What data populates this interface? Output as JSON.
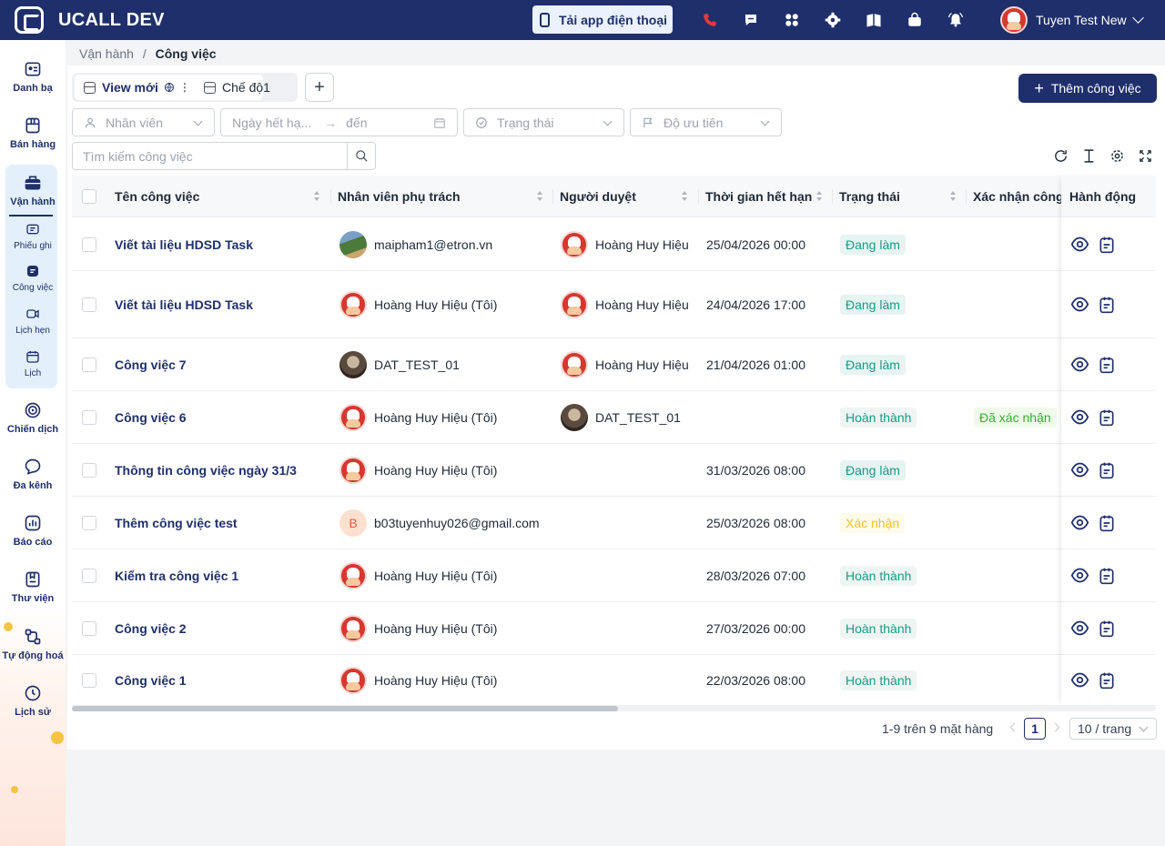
{
  "app": {
    "title": "UCALL DEV"
  },
  "header": {
    "app_download_label": "Tải app điện thoại",
    "user_name": "Tuyen Test New",
    "icons": [
      "phone-icon",
      "chat-icon",
      "grid-icon",
      "settings-icon",
      "book-icon",
      "bag-icon",
      "bell-icon"
    ],
    "missed_call_color": "#e23b3b"
  },
  "sidebar": {
    "items": [
      {
        "label": "Danh bạ",
        "icon": "contacts-icon"
      },
      {
        "label": "Bán hàng",
        "icon": "store-icon"
      },
      {
        "label": "Vận hành",
        "icon": "briefcase-icon",
        "active": true
      },
      {
        "label": "Chiến dịch",
        "icon": "target-icon"
      },
      {
        "label": "Đa kênh",
        "icon": "chat-bubble-icon"
      },
      {
        "label": "Báo cáo",
        "icon": "chart-icon"
      },
      {
        "label": "Thư viện",
        "icon": "library-icon"
      },
      {
        "label": "Tự động hoá",
        "icon": "automation-icon"
      },
      {
        "label": "Lịch sử",
        "icon": "clock-icon"
      }
    ],
    "sub_items": [
      {
        "label": "Phiếu ghi",
        "icon": "ticket-icon"
      },
      {
        "label": "Công việc",
        "icon": "task-icon",
        "active": true
      },
      {
        "label": "Lịch hẹn",
        "icon": "video-icon"
      },
      {
        "label": "Lịch",
        "icon": "calendar-icon"
      }
    ]
  },
  "breadcrumb": {
    "parent": "Vận hành",
    "separator": "/",
    "current": "Công việc"
  },
  "tabs": [
    {
      "label": "View mới",
      "active": true
    },
    {
      "label": "Chế độ1",
      "active": false
    }
  ],
  "add_tab_label": "+",
  "add_task_label": "Thêm công việc",
  "filters": {
    "employee_placeholder": "Nhân viên",
    "deadline_from_placeholder": "Ngày hết hạ...",
    "deadline_to_placeholder": "đến",
    "status_placeholder": "Trạng thái",
    "priority_placeholder": "Độ ưu tiên"
  },
  "search": {
    "placeholder": "Tìm kiếm công việc",
    "value": ""
  },
  "table": {
    "columns": [
      "Tên công việc",
      "Nhân viên phụ trách",
      "Người duyệt",
      "Thời gian hết hạn",
      "Trạng thái",
      "Xác nhận công",
      "Hành động"
    ],
    "rows": [
      {
        "name": "Viết tài liệu HDSD Task",
        "assignee": "maipham1@etron.vn",
        "assignee_avatar": "photo",
        "reviewer": "Hoàng Huy Hiệu",
        "reviewer_avatar": "red",
        "deadline": "25/04/2026 00:00",
        "status": "Đang làm",
        "status_type": "doing",
        "confirm": ""
      },
      {
        "name": "Viết tài liệu HDSD Task",
        "assignee": "Hoàng Huy Hiệu (Tôi)",
        "assignee_avatar": "red",
        "reviewer": "Hoàng Huy Hiệu",
        "reviewer_avatar": "red",
        "deadline": "24/04/2026 17:00",
        "status": "Đang làm",
        "status_type": "doing",
        "confirm": ""
      },
      {
        "name": "Công việc 7",
        "assignee": "DAT_TEST_01",
        "assignee_avatar": "dark",
        "reviewer": "Hoàng Huy Hiệu",
        "reviewer_avatar": "red",
        "deadline": "21/04/2026 01:00",
        "status": "Đang làm",
        "status_type": "doing",
        "confirm": ""
      },
      {
        "name": "Công việc 6",
        "assignee": "Hoàng Huy Hiệu (Tôi)",
        "assignee_avatar": "red",
        "reviewer": "DAT_TEST_01",
        "reviewer_avatar": "dark",
        "deadline": "",
        "status": "Hoàn thành",
        "status_type": "done",
        "confirm": "Đã xác nhận"
      },
      {
        "name": "Thông tin công việc ngày 31/3",
        "assignee": "Hoàng Huy Hiệu (Tôi)",
        "assignee_avatar": "red",
        "reviewer": "",
        "reviewer_avatar": "",
        "deadline": "31/03/2026 08:00",
        "status": "Đang làm",
        "status_type": "doing",
        "confirm": ""
      },
      {
        "name": "Thêm công việc test",
        "assignee": "b03tuyenhuy026@gmail.com",
        "assignee_avatar": "letter",
        "assignee_letter": "B",
        "reviewer": "",
        "reviewer_avatar": "",
        "deadline": "25/03/2026 08:00",
        "status": "Xác nhận",
        "status_type": "confirm",
        "confirm": ""
      },
      {
        "name": "Kiểm tra công việc 1",
        "assignee": "Hoàng Huy Hiệu (Tôi)",
        "assignee_avatar": "red",
        "reviewer": "",
        "reviewer_avatar": "",
        "deadline": "28/03/2026 07:00",
        "status": "Hoàn thành",
        "status_type": "done",
        "confirm": ""
      },
      {
        "name": "Công việc 2",
        "assignee": "Hoàng Huy Hiệu (Tôi)",
        "assignee_avatar": "red",
        "reviewer": "",
        "reviewer_avatar": "",
        "deadline": "27/03/2026 00:00",
        "status": "Hoàn thành",
        "status_type": "done",
        "confirm": ""
      },
      {
        "name": "Công việc 1",
        "assignee": "Hoàng Huy Hiệu (Tôi)",
        "assignee_avatar": "red",
        "reviewer": "",
        "reviewer_avatar": "",
        "deadline": "22/03/2026 08:00",
        "status": "Hoàn thành",
        "status_type": "done",
        "confirm": ""
      }
    ]
  },
  "pagination": {
    "summary": "1-9 trên 9 mặt hàng",
    "current_page": "1",
    "page_size": "10 / trang"
  }
}
